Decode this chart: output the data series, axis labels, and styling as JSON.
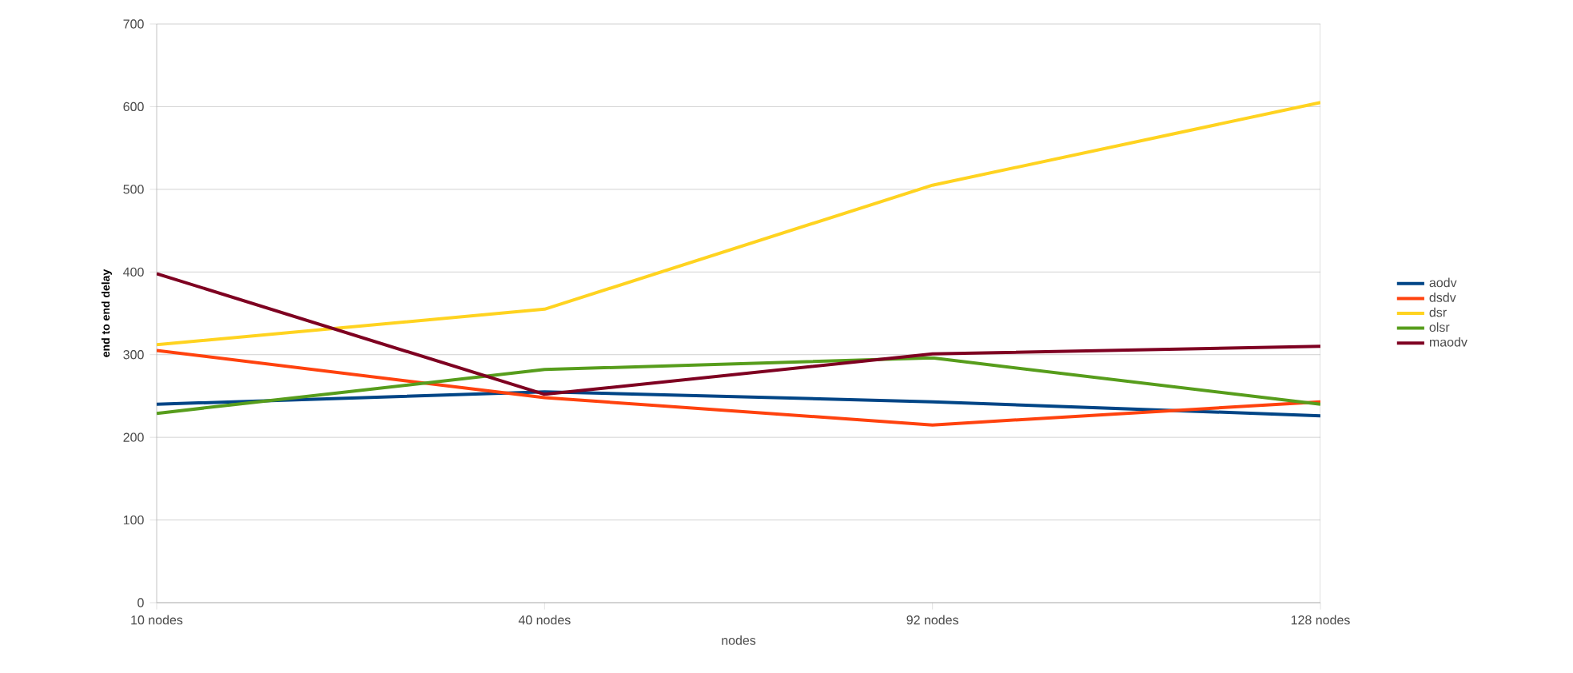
{
  "chart_data": {
    "type": "line",
    "xlabel": "nodes",
    "ylabel": "end to end delay",
    "categories": [
      "10 nodes",
      "40 nodes",
      "92 nodes",
      "128 nodes"
    ],
    "ylim": [
      0,
      700
    ],
    "yticks": [
      0,
      100,
      200,
      300,
      400,
      500,
      600,
      700
    ],
    "grid": "y",
    "legend": "right",
    "marker": "none",
    "line_style": "solid",
    "series": [
      {
        "name": "aodv",
        "color": "#004586",
        "values": [
          240,
          255,
          243,
          226
        ]
      },
      {
        "name": "dsdv",
        "color": "#ff420e",
        "values": [
          305,
          248,
          215,
          243
        ]
      },
      {
        "name": "dsr",
        "color": "#ffd320",
        "values": [
          312,
          355,
          505,
          605
        ]
      },
      {
        "name": "olsr",
        "color": "#579d1c",
        "values": [
          229,
          282,
          296,
          240
        ]
      },
      {
        "name": "maodv",
        "color": "#7e0021",
        "values": [
          398,
          252,
          301,
          310
        ]
      }
    ]
  }
}
